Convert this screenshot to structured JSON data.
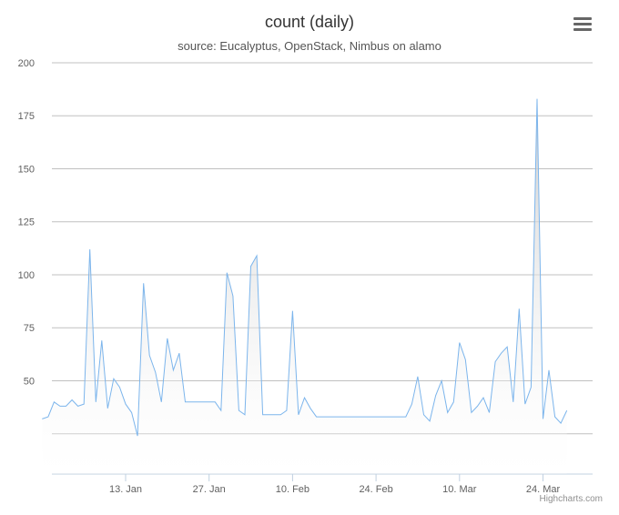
{
  "header": {
    "title": "count (daily)",
    "subtitle": "source: Eucalyptus, OpenStack, Nimbus on alamo"
  },
  "credits": "Highcharts.com",
  "menu_icon": "hamburger-menu-icon",
  "colors": {
    "line": "#7cb5ec",
    "area_top": "#c8c8c8",
    "area_bottom": "#ffffff",
    "grid": "#c0c0c0"
  },
  "chart_data": {
    "type": "area",
    "title": "count (daily)",
    "subtitle": "source: Eucalyptus, OpenStack, Nimbus on alamo",
    "xlabel": "",
    "ylabel": "",
    "x_start": "2014-12-30",
    "x_tick_labels": [
      "13. Jan",
      "27. Jan",
      "10. Feb",
      "24. Feb",
      "10. Mar",
      "24. Mar"
    ],
    "x_tick_dates": [
      "2015-01-13",
      "2015-01-27",
      "2015-02-10",
      "2015-02-24",
      "2015-03-10",
      "2015-03-24"
    ],
    "y_ticks": [
      50,
      75,
      100,
      125,
      150,
      175,
      200
    ],
    "ylim": [
      6,
      200
    ],
    "grid": true,
    "legend": "none",
    "series": [
      {
        "values": [
          32,
          33,
          40,
          38,
          38,
          41,
          38,
          39,
          112,
          40,
          69,
          37,
          51,
          47,
          39,
          35,
          24,
          96,
          62,
          54,
          40,
          70,
          55,
          63,
          40,
          40,
          40,
          40,
          40,
          40,
          36,
          101,
          90,
          36,
          34,
          104,
          109,
          34,
          34,
          34,
          34,
          36,
          83,
          34,
          42,
          37,
          33,
          33,
          33,
          33,
          33,
          33,
          33,
          33,
          33,
          33,
          33,
          33,
          33,
          33,
          33,
          33,
          39,
          52,
          34,
          31,
          43,
          50,
          35,
          40,
          68,
          60,
          35,
          38,
          42,
          35,
          59,
          63,
          66,
          40,
          84,
          39,
          47,
          183,
          32,
          55,
          33,
          30,
          36
        ]
      }
    ]
  }
}
